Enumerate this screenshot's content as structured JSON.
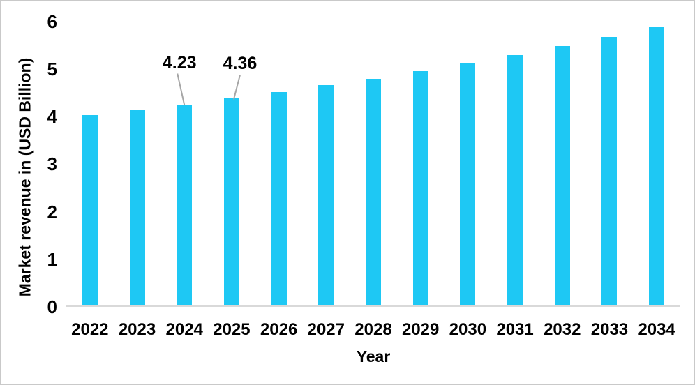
{
  "figure": {
    "background": "#FFFFFF",
    "border_color": "#C9C9C9"
  },
  "chart_data": {
    "type": "bar",
    "title": "",
    "xlabel": "Year",
    "ylabel": "Market revenue in (USD Billion)",
    "categories": [
      "2022",
      "2023",
      "2024",
      "2025",
      "2026",
      "2027",
      "2028",
      "2029",
      "2030",
      "2031",
      "2032",
      "2033",
      "2034"
    ],
    "values": [
      4.0,
      4.12,
      4.23,
      4.36,
      4.49,
      4.63,
      4.77,
      4.92,
      5.09,
      5.26,
      5.46,
      5.65,
      5.86
    ],
    "ylim": [
      0,
      6
    ],
    "yticks": [
      0,
      1,
      2,
      3,
      4,
      5,
      6
    ],
    "grid": false,
    "legend": "none",
    "bar_color": "#1EC8F4",
    "axis_line_color": "#D9D9D9",
    "annotation_line_color": "#A6A6A6",
    "text_color": "#000000",
    "annotations": [
      {
        "category": "2024",
        "label": "4.23"
      },
      {
        "category": "2025",
        "label": "4.36"
      }
    ]
  }
}
